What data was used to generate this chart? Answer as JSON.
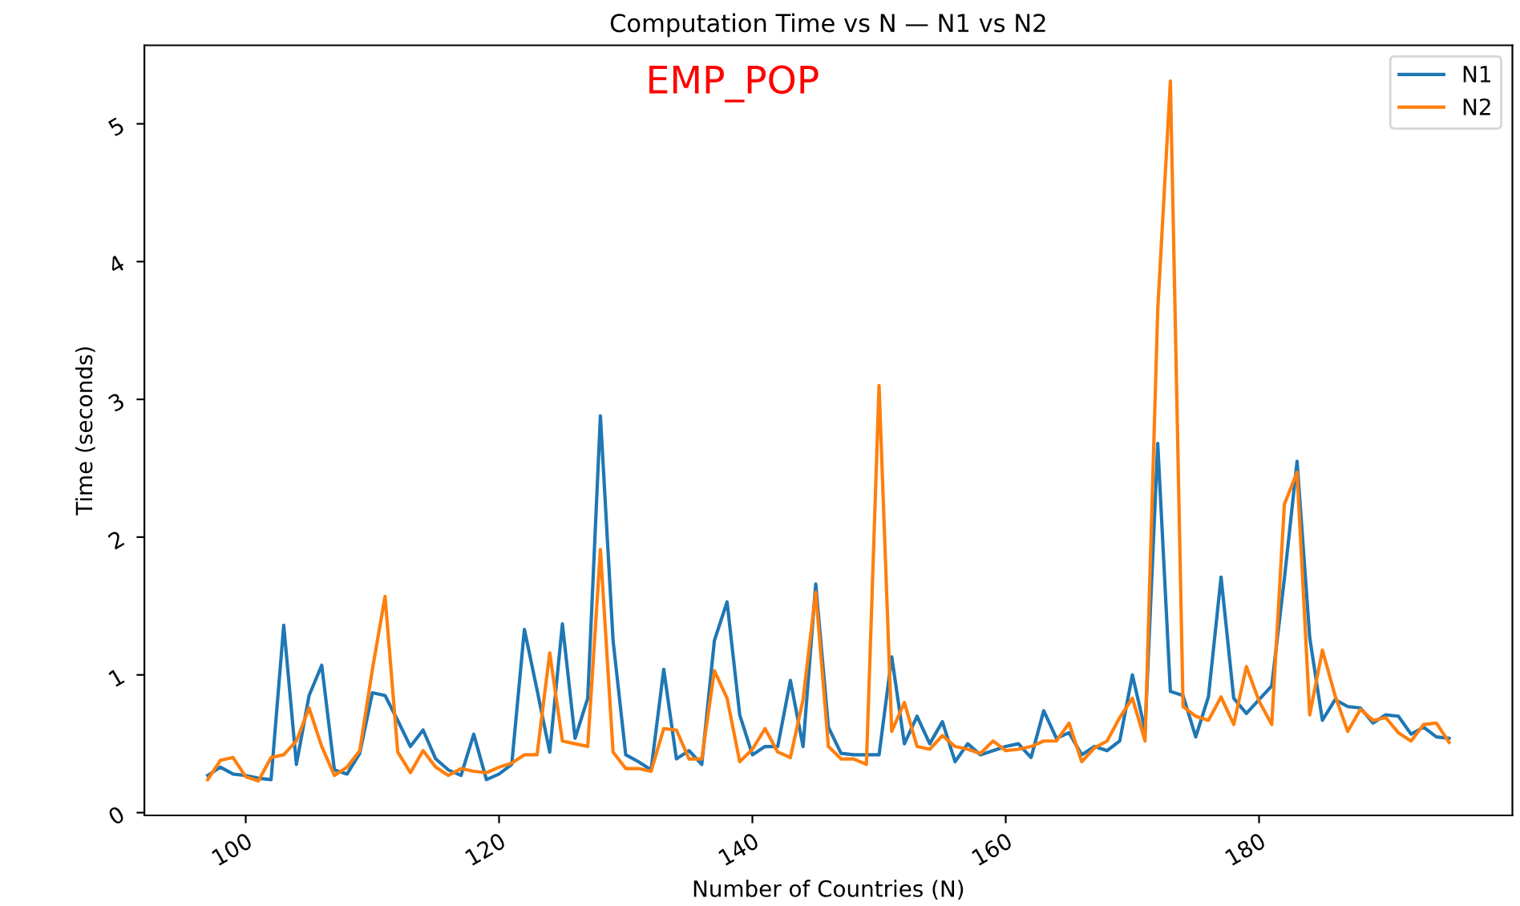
{
  "chart_data": {
    "type": "line",
    "title": "Computation Time vs N — N1 vs N2",
    "xlabel": "Number of Countries (N)",
    "ylabel": "Time (seconds)",
    "annotations": [
      "EMP_POP"
    ],
    "x": [
      97,
      98,
      99,
      100,
      101,
      102,
      103,
      104,
      105,
      106,
      107,
      108,
      109,
      110,
      111,
      112,
      113,
      114,
      115,
      116,
      117,
      118,
      119,
      120,
      121,
      122,
      123,
      124,
      125,
      126,
      127,
      128,
      129,
      130,
      131,
      132,
      133,
      134,
      135,
      136,
      137,
      138,
      139,
      140,
      141,
      142,
      143,
      144,
      145,
      146,
      147,
      148,
      149,
      150,
      151,
      152,
      153,
      154,
      155,
      156,
      157,
      158,
      159,
      160,
      161,
      162,
      163,
      164,
      165,
      166,
      167,
      168,
      169,
      170,
      171,
      172,
      173,
      174,
      175,
      176,
      177,
      178,
      179,
      180,
      181,
      182,
      183,
      184,
      185,
      186,
      187,
      188,
      189,
      190,
      191,
      192,
      193,
      194,
      195
    ],
    "series": [
      {
        "name": "N1",
        "color": "#1f77b4",
        "values": [
          0.27,
          0.33,
          0.28,
          0.27,
          0.25,
          0.24,
          1.36,
          0.35,
          0.85,
          1.07,
          0.31,
          0.28,
          0.43,
          0.87,
          0.85,
          0.67,
          0.48,
          0.6,
          0.39,
          0.31,
          0.27,
          0.57,
          0.24,
          0.28,
          0.35,
          1.33,
          0.89,
          0.44,
          1.37,
          0.54,
          0.83,
          2.88,
          1.25,
          0.42,
          0.37,
          0.31,
          1.04,
          0.39,
          0.45,
          0.35,
          1.25,
          1.53,
          0.71,
          0.42,
          0.48,
          0.48,
          0.96,
          0.48,
          1.66,
          0.62,
          0.43,
          0.42,
          0.42,
          0.42,
          1.13,
          0.5,
          0.7,
          0.5,
          0.66,
          0.37,
          0.5,
          0.42,
          0.45,
          0.48,
          0.5,
          0.4,
          0.74,
          0.54,
          0.58,
          0.42,
          0.48,
          0.45,
          0.52,
          1.0,
          0.6,
          2.68,
          0.88,
          0.85,
          0.55,
          0.84,
          1.71,
          0.83,
          0.72,
          0.82,
          0.92,
          1.7,
          2.55,
          1.27,
          0.67,
          0.82,
          0.77,
          0.76,
          0.65,
          0.71,
          0.7,
          0.57,
          0.62,
          0.55,
          0.54
        ]
      },
      {
        "name": "N2",
        "color": "#ff7f0e",
        "values": [
          0.24,
          0.38,
          0.4,
          0.26,
          0.23,
          0.4,
          0.42,
          0.52,
          0.76,
          0.48,
          0.27,
          0.33,
          0.45,
          1.04,
          1.57,
          0.44,
          0.29,
          0.45,
          0.33,
          0.27,
          0.32,
          0.3,
          0.29,
          0.33,
          0.36,
          0.42,
          0.42,
          1.16,
          0.52,
          0.5,
          0.48,
          1.91,
          0.44,
          0.32,
          0.32,
          0.3,
          0.61,
          0.6,
          0.39,
          0.39,
          1.03,
          0.83,
          0.37,
          0.46,
          0.61,
          0.44,
          0.4,
          0.82,
          1.6,
          0.48,
          0.39,
          0.39,
          0.35,
          3.1,
          0.59,
          0.8,
          0.48,
          0.46,
          0.56,
          0.48,
          0.46,
          0.43,
          0.52,
          0.45,
          0.46,
          0.48,
          0.52,
          0.52,
          0.65,
          0.37,
          0.47,
          0.52,
          0.69,
          0.83,
          0.52,
          3.65,
          5.31,
          0.77,
          0.7,
          0.67,
          0.84,
          0.64,
          1.06,
          0.81,
          0.64,
          2.24,
          2.47,
          0.71,
          1.18,
          0.85,
          0.59,
          0.75,
          0.67,
          0.69,
          0.58,
          0.52,
          0.64,
          0.65,
          0.51
        ]
      }
    ],
    "xlim": [
      92,
      200
    ],
    "ylim": [
      -0.02,
      5.57
    ],
    "xticks": [
      100,
      120,
      140,
      160,
      180
    ],
    "yticks": [
      0,
      1,
      2,
      3,
      4,
      5
    ],
    "legend": "top right",
    "grid": false
  }
}
